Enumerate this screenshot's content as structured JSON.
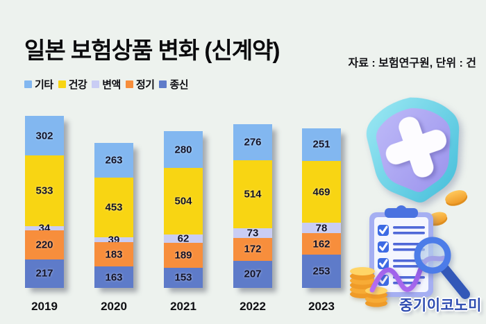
{
  "header": {
    "title": "일본 보험상품 변화 (신계약)",
    "source": "자료 : 보험연구원, 단위 : 건"
  },
  "chart_data": {
    "type": "bar",
    "stacked": true,
    "title": "일본 보험상품 변화 (신계약)",
    "unit": "건",
    "categories": [
      "2019",
      "2020",
      "2021",
      "2022",
      "2023"
    ],
    "series": [
      {
        "name": "기타",
        "color": "#82b7f0",
        "values": [
          302,
          263,
          280,
          276,
          251
        ]
      },
      {
        "name": "건강",
        "color": "#f8d513",
        "values": [
          533,
          453,
          504,
          514,
          469
        ]
      },
      {
        "name": "변액",
        "color": "#c9cdf4",
        "values": [
          34,
          39,
          62,
          73,
          78
        ]
      },
      {
        "name": "정기",
        "color": "#f78e3c",
        "values": [
          220,
          183,
          189,
          172,
          162
        ]
      },
      {
        "name": "종신",
        "color": "#5e7bc9",
        "values": [
          217,
          163,
          153,
          207,
          253
        ]
      }
    ],
    "legend_position": "top-left",
    "value_labels": true,
    "grid": false,
    "axes_visible": false
  },
  "footer": {
    "logo": "중기이코노미"
  },
  "colors": {
    "background": "#edf2ee",
    "text": "#0b0b0d",
    "logo": "#2e4cb0"
  },
  "icons": {
    "shield": "shield-with-medical-cross",
    "clipboard": "checklist-clipboard",
    "magnifier": "magnifying-glass",
    "coins": "gold-coin-stacks",
    "trend": "purple-trend-wave"
  }
}
